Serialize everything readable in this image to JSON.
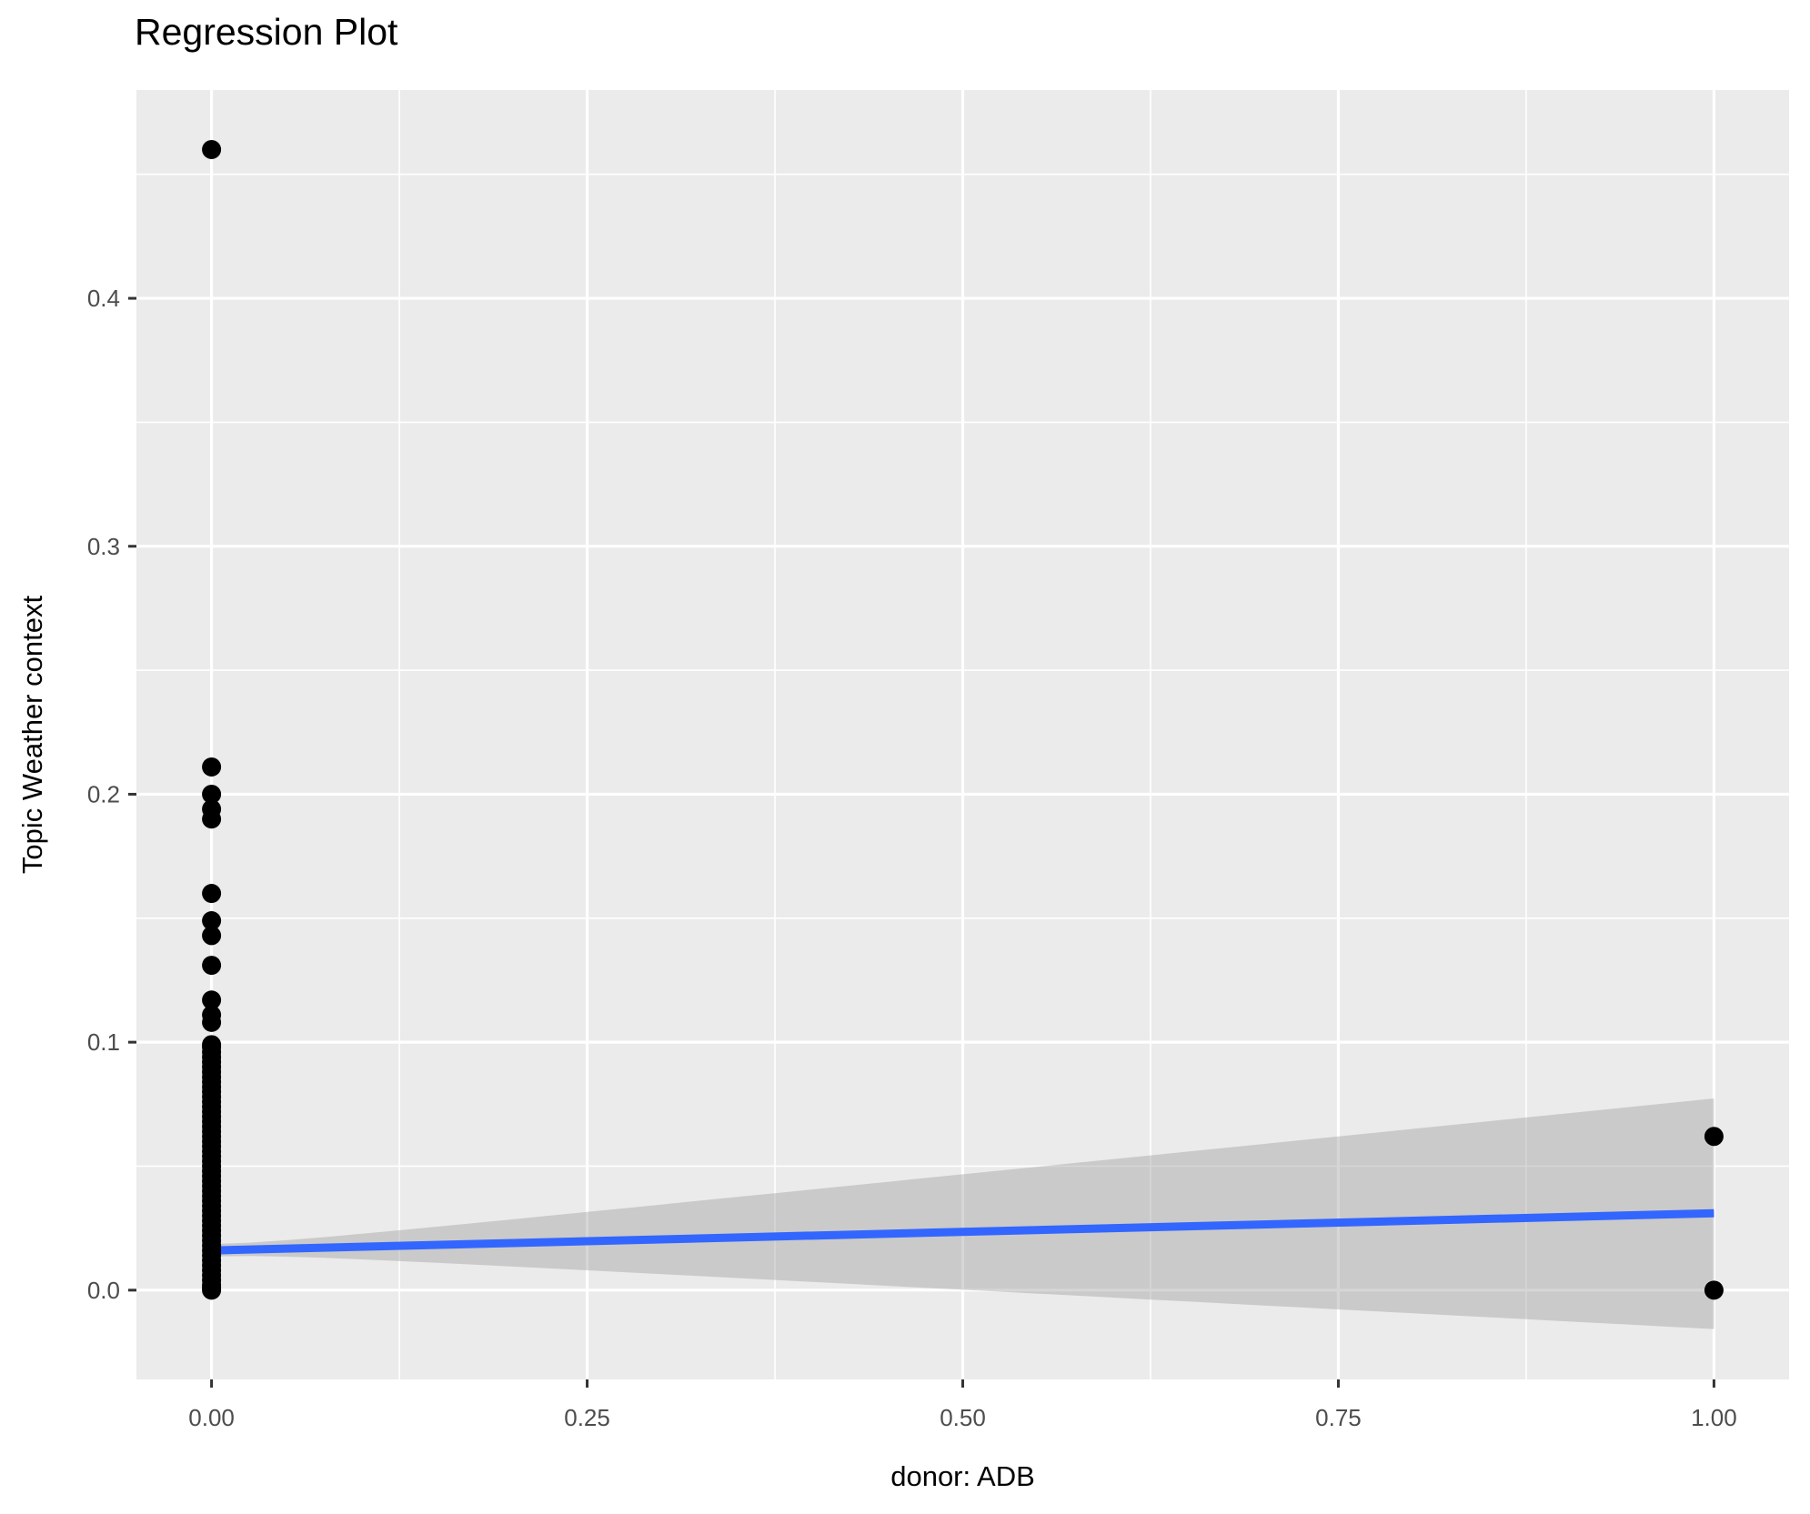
{
  "style": {
    "page_bg": "#FFFFFF",
    "panel_bg": "#EBEBEB",
    "grid_color": "#FFFFFF",
    "point_color": "#000000",
    "regression_line_color": "#3366FF",
    "ribbon_color": "#999999",
    "ribbon_opacity": 0.4,
    "tick_label_color": "#4D4D4D",
    "axis_tick_color": "#333333",
    "title_color": "#000000"
  },
  "chart_data": {
    "type": "scatter",
    "title": "Regression Plot",
    "xlabel": "donor: ADB",
    "ylabel": "Topic Weather context",
    "grid": "on",
    "legend": "none",
    "xlim": [
      -0.05,
      1.05
    ],
    "ylim": [
      -0.036,
      0.484
    ],
    "x_ticks": {
      "values": [
        0,
        0.25,
        0.5,
        0.75,
        1.0
      ],
      "labels": [
        "0.00",
        "0.25",
        "0.50",
        "0.75",
        "1.00"
      ]
    },
    "y_ticks": {
      "values": [
        0,
        0.1,
        0.2,
        0.3,
        0.4
      ],
      "labels": [
        "0.0",
        "0.1",
        "0.2",
        "0.3",
        "0.4"
      ]
    },
    "x_minor_ticks": [
      0.125,
      0.375,
      0.625,
      0.875
    ],
    "y_minor_ticks": [
      0.05,
      0.15,
      0.25,
      0.35,
      0.45
    ],
    "series": [
      {
        "name": "observations at donor=0 (isolated upper points)",
        "x": 0,
        "y": [
          0.46,
          0.211,
          0.2,
          0.194,
          0.19,
          0.16,
          0.149,
          0.143,
          0.131,
          0.117,
          0.111,
          0.108
        ]
      },
      {
        "name": "observations at donor=0 (dense column)",
        "x": 0,
        "y": [
          0.0,
          0.001,
          0.002,
          0.004,
          0.006,
          0.008,
          0.01,
          0.012,
          0.014,
          0.016,
          0.018,
          0.02,
          0.022,
          0.024,
          0.026,
          0.028,
          0.03,
          0.032,
          0.034,
          0.036,
          0.038,
          0.04,
          0.042,
          0.044,
          0.046,
          0.048,
          0.05,
          0.052,
          0.054,
          0.056,
          0.058,
          0.06,
          0.062,
          0.064,
          0.066,
          0.068,
          0.07,
          0.072,
          0.074,
          0.076,
          0.078,
          0.08,
          0.082,
          0.084,
          0.086,
          0.088,
          0.09,
          0.092,
          0.094,
          0.096,
          0.098,
          0.099
        ]
      },
      {
        "name": "observations at donor=1",
        "x": 1,
        "y": [
          0.062,
          0.0
        ]
      }
    ],
    "regression_line": {
      "x": [
        0,
        1
      ],
      "y": [
        0.016,
        0.031
      ]
    },
    "ci_ribbon": {
      "x": [
        0,
        1
      ],
      "upper": [
        0.0186,
        0.0773
      ],
      "lower": [
        0.0136,
        -0.0157
      ]
    }
  }
}
